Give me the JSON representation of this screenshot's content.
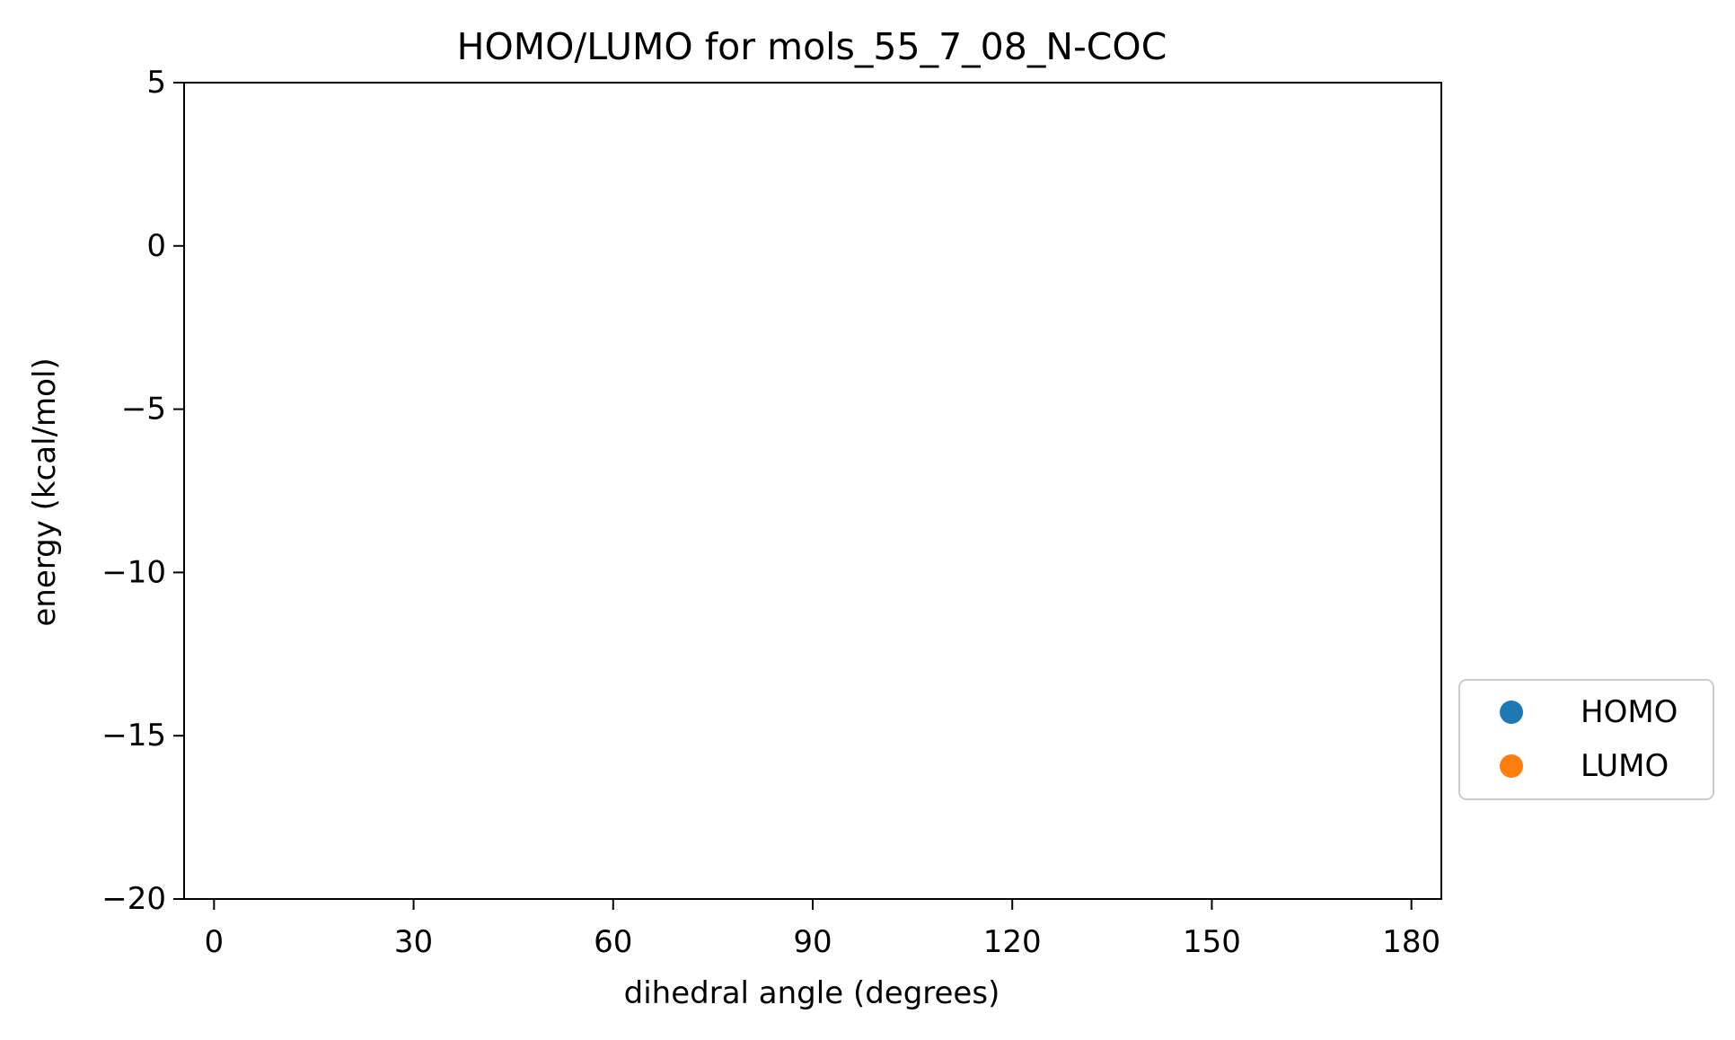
{
  "chart_data": {
    "type": "scatter",
    "title": "HOMO/LUMO for mols_55_7_08_N-COC",
    "xlabel": "dihedral angle (degrees)",
    "ylabel": "energy (kcal/mol)",
    "xlim": [
      -4.5,
      184.5
    ],
    "ylim": [
      -20,
      5
    ],
    "xticks": [
      0,
      30,
      60,
      90,
      120,
      150,
      180
    ],
    "xtick_labels": [
      "0",
      "30",
      "60",
      "90",
      "120",
      "150",
      "180"
    ],
    "yticks": [
      5,
      0,
      -5,
      -10,
      -15,
      -20
    ],
    "ytick_labels": [
      "5",
      "0",
      "−5",
      "−10",
      "−15",
      "−20"
    ],
    "grid": false,
    "legend_position": "outside-right-bottom",
    "series": [
      {
        "name": "HOMO",
        "color": "#1f77b4",
        "x": [],
        "y": []
      },
      {
        "name": "LUMO",
        "color": "#ff7f0e",
        "x": [],
        "y": []
      }
    ]
  }
}
